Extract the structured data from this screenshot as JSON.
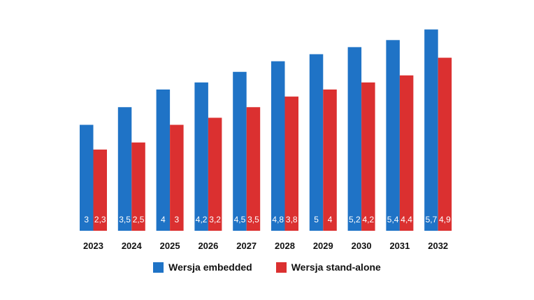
{
  "chart_data": {
    "type": "bar",
    "categories": [
      "2023",
      "2024",
      "2025",
      "2026",
      "2027",
      "2028",
      "2029",
      "2030",
      "2031",
      "2032"
    ],
    "series": [
      {
        "name": "Wersja embedded",
        "values": [
          3,
          3.5,
          4,
          4.2,
          4.5,
          4.8,
          5,
          5.2,
          5.4,
          5.7
        ],
        "labels": [
          "3",
          "3,5",
          "4",
          "4,2",
          "4,5",
          "4,8",
          "5",
          "5,2",
          "5,4",
          "5,7"
        ],
        "color": "#1f73c6"
      },
      {
        "name": "Wersja stand-alone",
        "values": [
          2.3,
          2.5,
          3,
          3.2,
          3.5,
          3.8,
          4,
          4.2,
          4.4,
          4.9
        ],
        "labels": [
          "2,3",
          "2,5",
          "3",
          "3,2",
          "3,5",
          "3,8",
          "4",
          "4,2",
          "4,4",
          "4,9"
        ],
        "color": "#db3030"
      }
    ],
    "legend": "bottom-center",
    "grid": false,
    "axes_visible": false
  }
}
